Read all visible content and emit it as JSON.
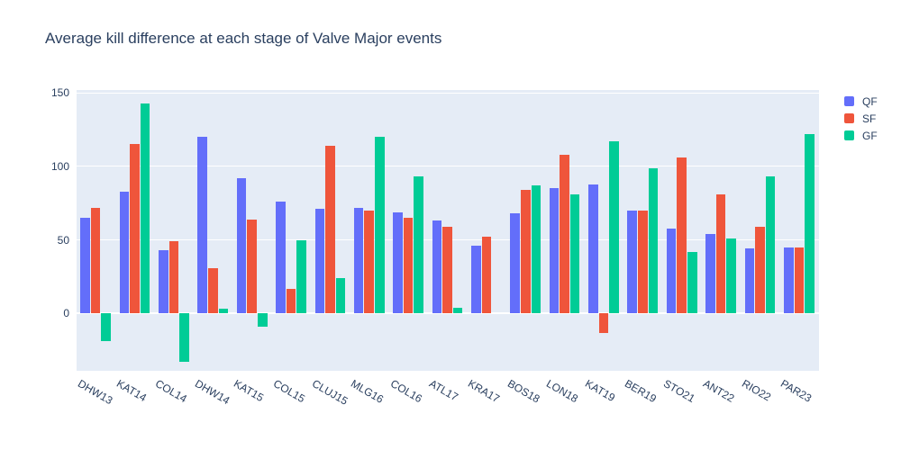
{
  "chart_data": {
    "type": "bar",
    "title": "Average kill difference at each stage of Valve Major events",
    "xlabel": "",
    "ylabel": "",
    "categories": [
      "DHW13",
      "KAT14",
      "COL14",
      "DHW14",
      "KAT15",
      "COL15",
      "CLUJ15",
      "MLG16",
      "COL16",
      "ATL17",
      "KRA17",
      "BOS18",
      "LON18",
      "KAT19",
      "BER19",
      "STO21",
      "ANT22",
      "RIO22",
      "PAR23"
    ],
    "series": [
      {
        "name": "QF",
        "color": "#636efa",
        "values": [
          65,
          83,
          43,
          120,
          92,
          76,
          71,
          72,
          69,
          63,
          46,
          68,
          85,
          88,
          70,
          58,
          54,
          44,
          45
        ]
      },
      {
        "name": "SF",
        "color": "#ef553b",
        "values": [
          72,
          115,
          49,
          31,
          64,
          17,
          114,
          70,
          65,
          59,
          52,
          84,
          108,
          -13,
          70,
          106,
          81,
          59,
          45
        ]
      },
      {
        "name": "GF",
        "color": "#00cc96",
        "values": [
          -19,
          143,
          -33,
          3,
          -9,
          50,
          24,
          120,
          93,
          4,
          0,
          87,
          81,
          117,
          99,
          42,
          51,
          93,
          122
        ]
      }
    ],
    "yticks": [
      0,
      50,
      100,
      150
    ],
    "ylim": [
      -39,
      152
    ],
    "grid": true,
    "legend_position": "top-right",
    "plot_bg": "#e5ecf6",
    "grid_color": "#ffffff",
    "text_color": "#2a3f5f"
  }
}
